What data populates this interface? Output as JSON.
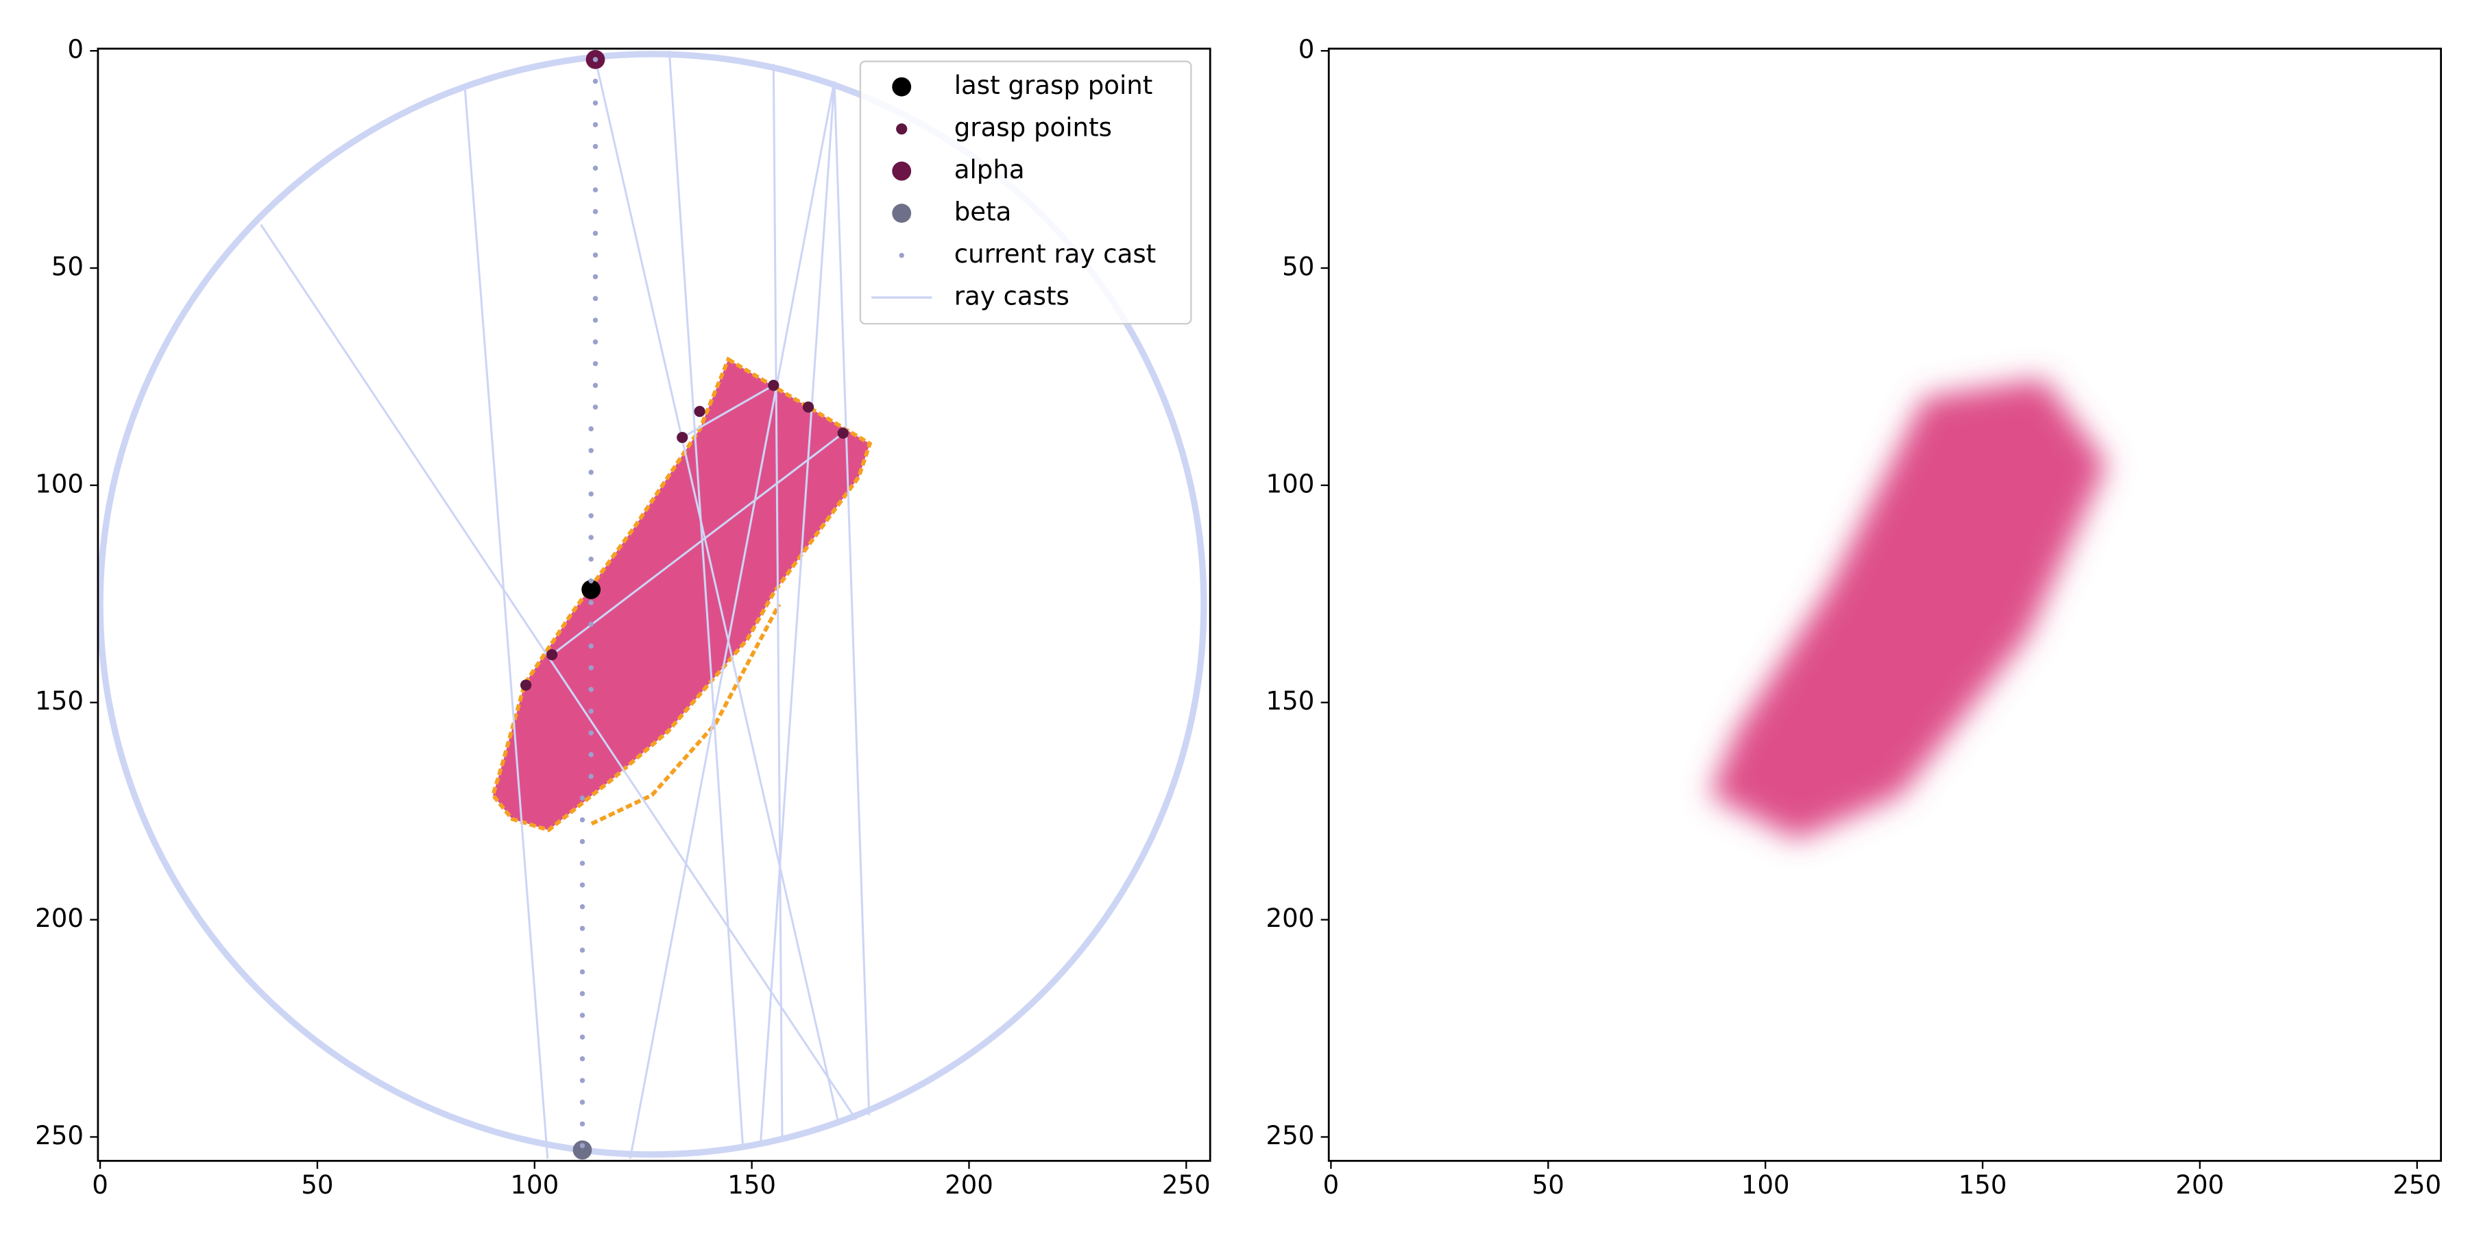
{
  "chart_data": [
    {
      "type": "scatter",
      "xlim": [
        -0.5,
        255.5
      ],
      "ylim": [
        255.5,
        -0.5
      ],
      "xticks": [
        0,
        50,
        100,
        150,
        200,
        250
      ],
      "yticks": [
        0,
        50,
        100,
        150,
        200,
        250
      ],
      "grid": false,
      "legend": "upper right",
      "series": [
        {
          "name": "last grasp point",
          "color": "#000000",
          "marker_size": 6,
          "x": [
            113
          ],
          "y": [
            124
          ]
        },
        {
          "name": "grasp points",
          "color": "#5e1640",
          "marker_size": 3.5,
          "x": [
            134,
            138,
            155,
            163,
            171,
            104,
            98
          ],
          "y": [
            89,
            83,
            77,
            82,
            88,
            139,
            146
          ]
        },
        {
          "name": "alpha",
          "color": "#6b1446",
          "marker_size": 6,
          "x": [
            114
          ],
          "y": [
            2
          ]
        },
        {
          "name": "beta",
          "color": "#6e7089",
          "marker_size": 6,
          "x": [
            111
          ],
          "y": [
            253
          ]
        },
        {
          "name": "current ray cast",
          "color": "#9aa1cc",
          "marker_size": 1.6,
          "x": [
            114,
            114,
            114,
            114,
            114,
            114,
            114,
            114,
            114,
            114,
            114,
            114,
            114,
            114,
            114,
            114,
            114,
            113,
            113,
            113,
            113,
            113,
            113,
            113,
            113,
            113,
            113,
            113,
            113,
            113,
            113,
            113,
            113,
            113,
            111,
            111,
            111,
            111,
            111,
            111,
            111,
            111,
            111,
            111,
            111,
            111,
            111,
            111,
            111,
            111,
            111
          ],
          "y": [
            2,
            7,
            12,
            17,
            22,
            27,
            32,
            37,
            42,
            47,
            52,
            57,
            62,
            67,
            72,
            77,
            82,
            87,
            92,
            97,
            102,
            107,
            112,
            117,
            122,
            127,
            132,
            137,
            142,
            147,
            152,
            157,
            162,
            167,
            172,
            177,
            182,
            187,
            192,
            197,
            202,
            207,
            212,
            217,
            222,
            227,
            232,
            237,
            242,
            247,
            252
          ]
        },
        {
          "name": "ray casts",
          "color": "#cdd5f5",
          "segments": [
            {
              "x": [
                37,
                174
              ],
              "y": [
                40,
                246
              ]
            },
            {
              "x": [
                84,
                103
              ],
              "y": [
                9,
                255
              ]
            },
            {
              "x": [
                131,
                148
              ],
              "y": [
                0,
                253
              ]
            },
            {
              "x": [
                155,
                157
              ],
              "y": [
                3,
                251
              ]
            },
            {
              "x": [
                169,
                122
              ],
              "y": [
                7,
                255
              ]
            },
            {
              "x": [
                169,
                177
              ],
              "y": [
                7,
                245
              ]
            },
            {
              "x": [
                169,
                152
              ],
              "y": [
                7,
                252
              ]
            },
            {
              "x": [
                114,
                170
              ],
              "y": [
                2,
                247
              ]
            },
            {
              "x": [
                155,
                134
              ],
              "y": [
                77,
                89
              ]
            },
            {
              "x": [
                171,
                104
              ],
              "y": [
                88,
                139
              ]
            }
          ]
        }
      ]
    },
    {
      "type": "image",
      "xlim": [
        -0.5,
        255.5
      ],
      "ylim": [
        255.5,
        -0.5
      ],
      "xticks": [
        0,
        50,
        100,
        150,
        200,
        250
      ],
      "yticks": [
        0,
        50,
        100,
        150,
        200,
        250
      ],
      "grid": false
    }
  ]
}
